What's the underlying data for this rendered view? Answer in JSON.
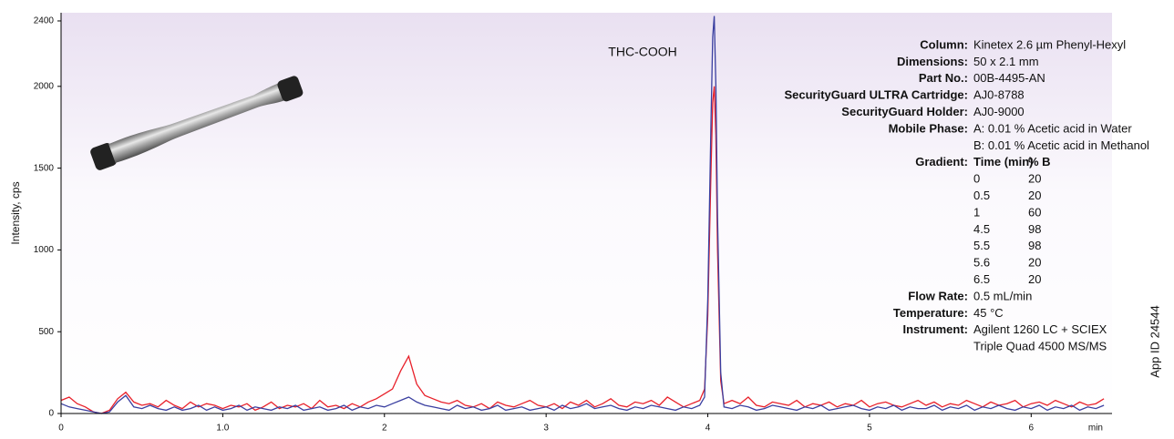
{
  "chart_data": {
    "type": "line",
    "ylabel": "Intensity, cps",
    "xlabel": "min",
    "annotation": "THC-COOH",
    "side_note": "App ID 24544",
    "xlim": [
      0,
      6.5
    ],
    "ylim": [
      0,
      2450
    ],
    "xticks": [
      0,
      {
        "value": 1,
        "label": "1.0"
      },
      2,
      3,
      4,
      5,
      6
    ],
    "yticks": [
      0,
      500,
      1000,
      1500,
      2000,
      2400
    ],
    "x": [
      0,
      0.05,
      0.1,
      0.15,
      0.2,
      0.25,
      0.3,
      0.35,
      0.4,
      0.45,
      0.5,
      0.55,
      0.6,
      0.65,
      0.7,
      0.75,
      0.8,
      0.85,
      0.9,
      0.95,
      1,
      1.05,
      1.1,
      1.15,
      1.2,
      1.25,
      1.3,
      1.35,
      1.4,
      1.45,
      1.5,
      1.55,
      1.6,
      1.65,
      1.7,
      1.75,
      1.8,
      1.85,
      1.9,
      1.95,
      2,
      2.05,
      2.1,
      2.15,
      2.2,
      2.25,
      2.3,
      2.35,
      2.4,
      2.45,
      2.5,
      2.55,
      2.6,
      2.65,
      2.7,
      2.75,
      2.8,
      2.85,
      2.9,
      2.95,
      3,
      3.05,
      3.1,
      3.15,
      3.2,
      3.25,
      3.3,
      3.35,
      3.4,
      3.45,
      3.5,
      3.55,
      3.6,
      3.65,
      3.7,
      3.75,
      3.8,
      3.85,
      3.9,
      3.95,
      3.98,
      4,
      4.02,
      4.03,
      4.04,
      4.05,
      4.06,
      4.08,
      4.1,
      4.15,
      4.2,
      4.25,
      4.3,
      4.35,
      4.4,
      4.45,
      4.5,
      4.55,
      4.6,
      4.65,
      4.7,
      4.75,
      4.8,
      4.85,
      4.9,
      4.95,
      5,
      5.05,
      5.1,
      5.15,
      5.2,
      5.25,
      5.3,
      5.35,
      5.4,
      5.45,
      5.5,
      5.55,
      5.6,
      5.65,
      5.7,
      5.75,
      5.8,
      5.85,
      5.9,
      5.95,
      6,
      6.05,
      6.1,
      6.15,
      6.2,
      6.25,
      6.3,
      6.35,
      6.4,
      6.45
    ],
    "series": [
      {
        "color": "#e8202a",
        "values": [
          80,
          100,
          60,
          40,
          10,
          0,
          20,
          90,
          130,
          70,
          50,
          60,
          40,
          80,
          50,
          30,
          70,
          40,
          60,
          50,
          30,
          50,
          40,
          60,
          20,
          40,
          70,
          30,
          50,
          40,
          60,
          30,
          80,
          40,
          50,
          30,
          60,
          40,
          70,
          90,
          120,
          150,
          260,
          350,
          180,
          110,
          90,
          70,
          60,
          80,
          50,
          40,
          60,
          30,
          70,
          50,
          40,
          60,
          80,
          50,
          40,
          60,
          30,
          70,
          50,
          80,
          40,
          60,
          90,
          50,
          40,
          70,
          60,
          80,
          50,
          100,
          70,
          40,
          60,
          80,
          150,
          600,
          1500,
          1900,
          2000,
          1700,
          1000,
          200,
          60,
          80,
          60,
          100,
          50,
          40,
          70,
          60,
          50,
          80,
          40,
          60,
          50,
          70,
          40,
          60,
          50,
          80,
          40,
          60,
          70,
          50,
          40,
          60,
          80,
          50,
          70,
          40,
          60,
          50,
          80,
          60,
          40,
          70,
          50,
          60,
          80,
          40,
          60,
          70,
          50,
          80,
          60,
          40,
          70,
          50,
          60,
          90
        ]
      },
      {
        "color": "#3a3fa0",
        "values": [
          60,
          40,
          30,
          20,
          10,
          0,
          10,
          70,
          110,
          40,
          30,
          50,
          30,
          20,
          40,
          20,
          30,
          50,
          20,
          40,
          20,
          30,
          50,
          20,
          40,
          30,
          20,
          40,
          30,
          50,
          20,
          30,
          40,
          20,
          30,
          50,
          20,
          40,
          30,
          50,
          40,
          60,
          80,
          100,
          70,
          50,
          40,
          30,
          20,
          50,
          30,
          40,
          20,
          30,
          50,
          20,
          30,
          40,
          20,
          30,
          40,
          20,
          50,
          30,
          40,
          60,
          30,
          40,
          50,
          30,
          20,
          40,
          30,
          50,
          40,
          30,
          20,
          40,
          30,
          50,
          100,
          700,
          1800,
          2300,
          2430,
          2000,
          1200,
          250,
          40,
          30,
          50,
          40,
          20,
          30,
          50,
          40,
          30,
          20,
          40,
          30,
          50,
          20,
          30,
          40,
          50,
          30,
          20,
          40,
          30,
          50,
          20,
          40,
          30,
          30,
          50,
          20,
          40,
          30,
          50,
          20,
          40,
          30,
          50,
          30,
          20,
          40,
          30,
          50,
          20,
          40,
          30,
          50,
          20,
          40,
          30,
          50
        ]
      }
    ],
    "conditions": [
      {
        "label": "Column:",
        "lines": [
          "Kinetex 2.6 µm Phenyl-Hexyl"
        ]
      },
      {
        "label": "Dimensions:",
        "lines": [
          "50 x 2.1 mm"
        ]
      },
      {
        "label": "Part No.:",
        "lines": [
          "00B-4495-AN"
        ]
      },
      {
        "label": "SecurityGuard ULTRA Cartridge:",
        "lines": [
          "AJ0-8788"
        ]
      },
      {
        "label": "SecurityGuard Holder:",
        "lines": [
          "AJ0-9000"
        ]
      },
      {
        "label": "Mobile Phase:",
        "lines": [
          "A: 0.01 % Acetic acid in Water",
          "B: 0.01 % Acetic acid in Methanol"
        ]
      },
      {
        "label": "Gradient:",
        "header": [
          "Time (min)",
          "% B"
        ],
        "rows": [
          [
            0,
            20
          ],
          [
            0.5,
            20
          ],
          [
            1,
            60
          ],
          [
            4.5,
            98
          ],
          [
            5.5,
            98
          ],
          [
            5.6,
            20
          ],
          [
            6.5,
            20
          ]
        ]
      },
      {
        "label": "Flow Rate:",
        "lines": [
          "0.5 mL/min"
        ]
      },
      {
        "label": "Temperature:",
        "lines": [
          "45 °C"
        ]
      },
      {
        "label": "Instrument:",
        "lines": [
          "Agilent 1260 LC + SCIEX",
          "Triple Quad 4500 MS/MS"
        ]
      }
    ]
  }
}
